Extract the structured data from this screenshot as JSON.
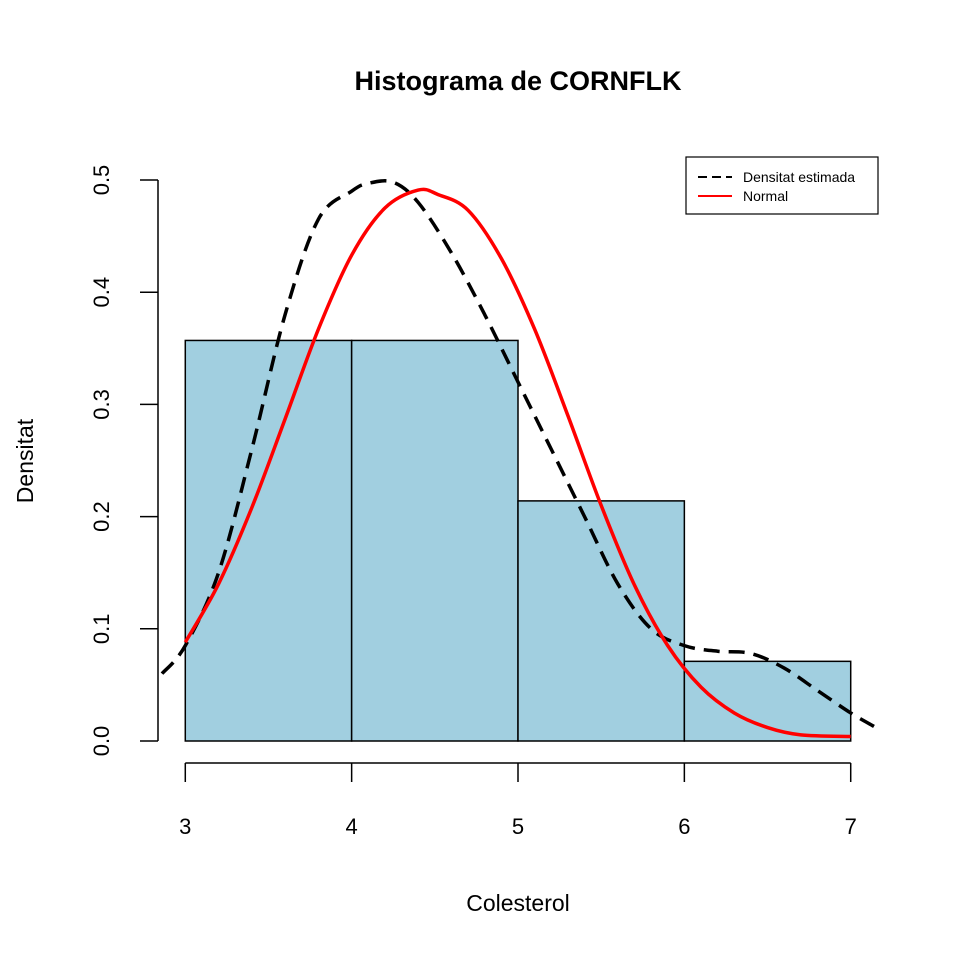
{
  "chart_data": {
    "type": "bar",
    "title": "Histograma de CORNFLK",
    "xlabel": "Colesterol",
    "ylabel": "Densitat",
    "bins": [
      {
        "x0": 3,
        "x1": 4,
        "density": 0.357
      },
      {
        "x0": 4,
        "x1": 5,
        "density": 0.357
      },
      {
        "x0": 5,
        "x1": 6,
        "density": 0.214
      },
      {
        "x0": 6,
        "x1": 7,
        "density": 0.071
      }
    ],
    "bar_color": "#a1cfe0",
    "x_ticks": [
      "3",
      "4",
      "5",
      "6",
      "7"
    ],
    "y_ticks": [
      "0.0",
      "0.1",
      "0.2",
      "0.3",
      "0.4",
      "0.5"
    ],
    "xlim": [
      2.86,
      7.14
    ],
    "ylim": [
      0,
      0.5
    ],
    "grid": false,
    "legend_position": "top-right",
    "series": [
      {
        "name": "Densitat estimada",
        "color": "#000000",
        "dash": true,
        "x": [
          2.86,
          3.0,
          3.2,
          3.4,
          3.6,
          3.8,
          4.0,
          4.1,
          4.25,
          4.4,
          4.6,
          4.8,
          5.0,
          5.2,
          5.4,
          5.6,
          5.8,
          6.0,
          6.2,
          6.4,
          6.6,
          6.8,
          7.0,
          7.14
        ],
        "y": [
          0.06,
          0.085,
          0.15,
          0.26,
          0.38,
          0.465,
          0.49,
          0.497,
          0.498,
          0.48,
          0.435,
          0.38,
          0.32,
          0.26,
          0.2,
          0.14,
          0.1,
          0.085,
          0.08,
          0.078,
          0.065,
          0.045,
          0.025,
          0.013
        ]
      },
      {
        "name": "Normal",
        "color": "#ff0000",
        "dash": false,
        "x": [
          3.0,
          3.2,
          3.4,
          3.6,
          3.8,
          4.0,
          4.2,
          4.4,
          4.52,
          4.7,
          4.9,
          5.1,
          5.3,
          5.5,
          5.7,
          5.9,
          6.1,
          6.3,
          6.5,
          6.7,
          7.0
        ],
        "y": [
          0.088,
          0.14,
          0.208,
          0.287,
          0.367,
          0.433,
          0.475,
          0.491,
          0.487,
          0.473,
          0.43,
          0.367,
          0.29,
          0.21,
          0.139,
          0.085,
          0.048,
          0.025,
          0.012,
          0.0055,
          0.004
        ]
      }
    ]
  }
}
